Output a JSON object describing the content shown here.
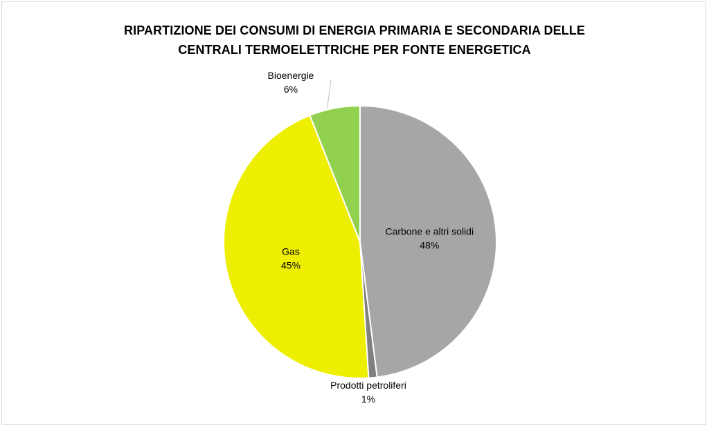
{
  "chart_data": {
    "type": "pie",
    "title_lines": [
      "RIPARTIZIONE DEI CONSUMI DI ENERGIA PRIMARIA E SECONDARIA DELLE",
      "CENTRALI TERMOELETTRICHE PER FONTE ENERGETICA"
    ],
    "start_angle_deg": 0,
    "direction": "clockwise",
    "slices": [
      {
        "name": "Carbone e altri solidi",
        "value": 48,
        "label": "48%",
        "color": "#a6a6a6"
      },
      {
        "name": "Prodotti petroliferi",
        "value": 1,
        "label": "1%",
        "color": "#808080"
      },
      {
        "name": "Gas",
        "value": 45,
        "label": "45%",
        "color": "#eeee00"
      },
      {
        "name": "Bioenergie",
        "value": 6,
        "label": "6%",
        "color": "#92d050"
      }
    ],
    "slice_border_color": "#ffffff",
    "leader_line_color": "#bfbfbf",
    "legend": "none"
  }
}
